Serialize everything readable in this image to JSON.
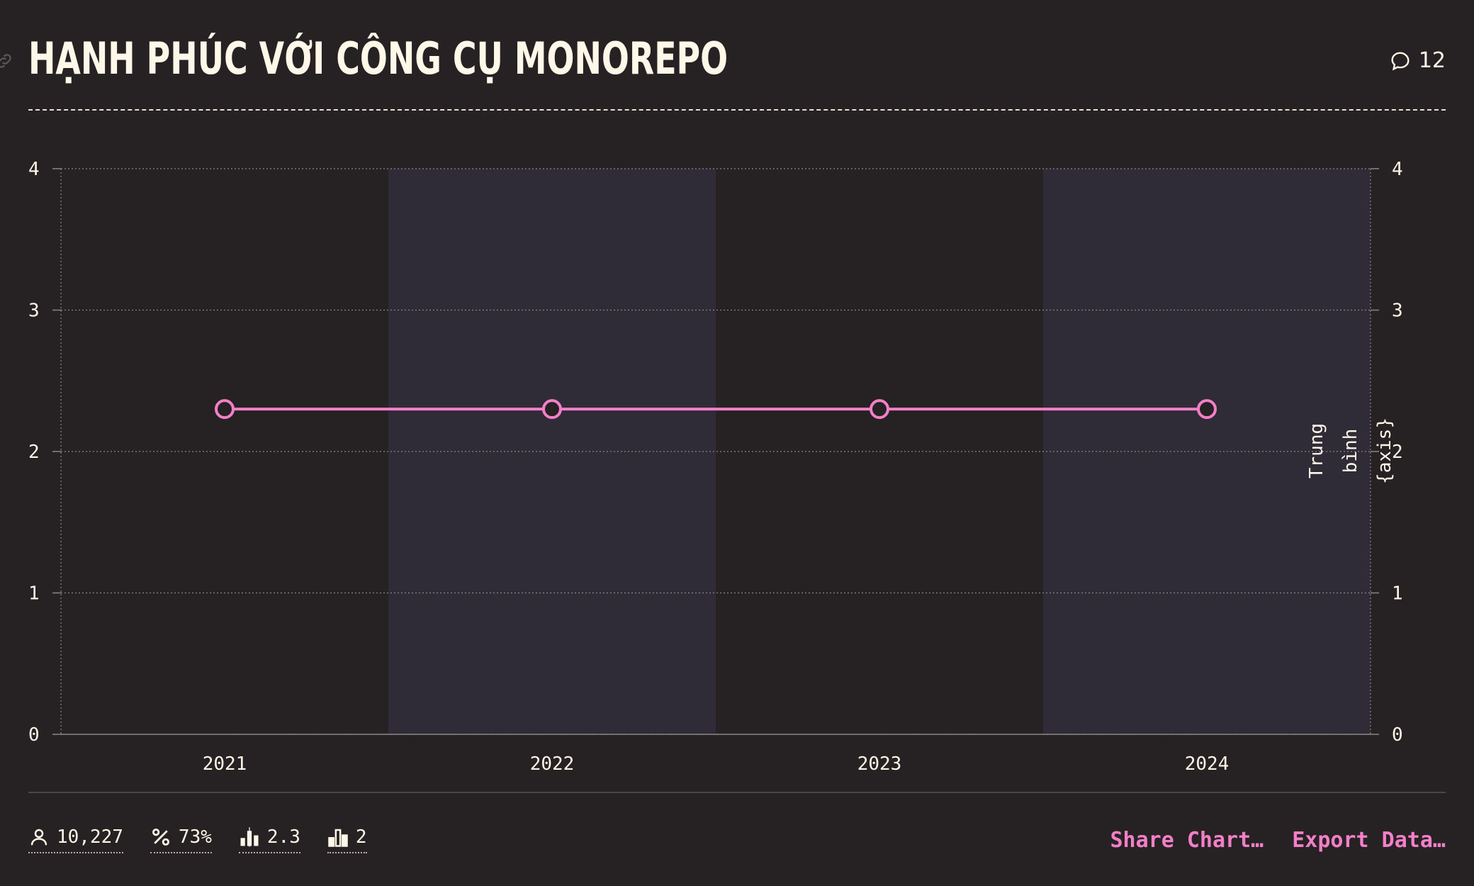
{
  "header": {
    "title": "HẠNH PHÚC VỚI CÔNG CỤ MONOREPO",
    "comment_count": "12"
  },
  "footer": {
    "stats": [
      {
        "icon": "person-icon",
        "value": "10,227"
      },
      {
        "icon": "percent-icon",
        "value": "73%"
      },
      {
        "icon": "bar-median-icon",
        "value": "2.3"
      },
      {
        "icon": "bar-mode-icon",
        "value": "2"
      }
    ],
    "share_label": "Share Chart…",
    "export_label": "Export Data…"
  },
  "colors": {
    "background": "#262223",
    "band_alt": "#302c37",
    "line": "#f27fc7",
    "text": "#fff7e8"
  },
  "chart_data": {
    "type": "line",
    "categories": [
      "2021",
      "2022",
      "2023",
      "2024"
    ],
    "series": [
      {
        "values": [
          2.3,
          2.3,
          2.3,
          2.3
        ]
      }
    ],
    "ylim": [
      0,
      4
    ],
    "yticks": [
      "0",
      "1",
      "2",
      "3",
      "4"
    ],
    "ylabel_right": "Trung bình {axis}",
    "grid": true
  }
}
